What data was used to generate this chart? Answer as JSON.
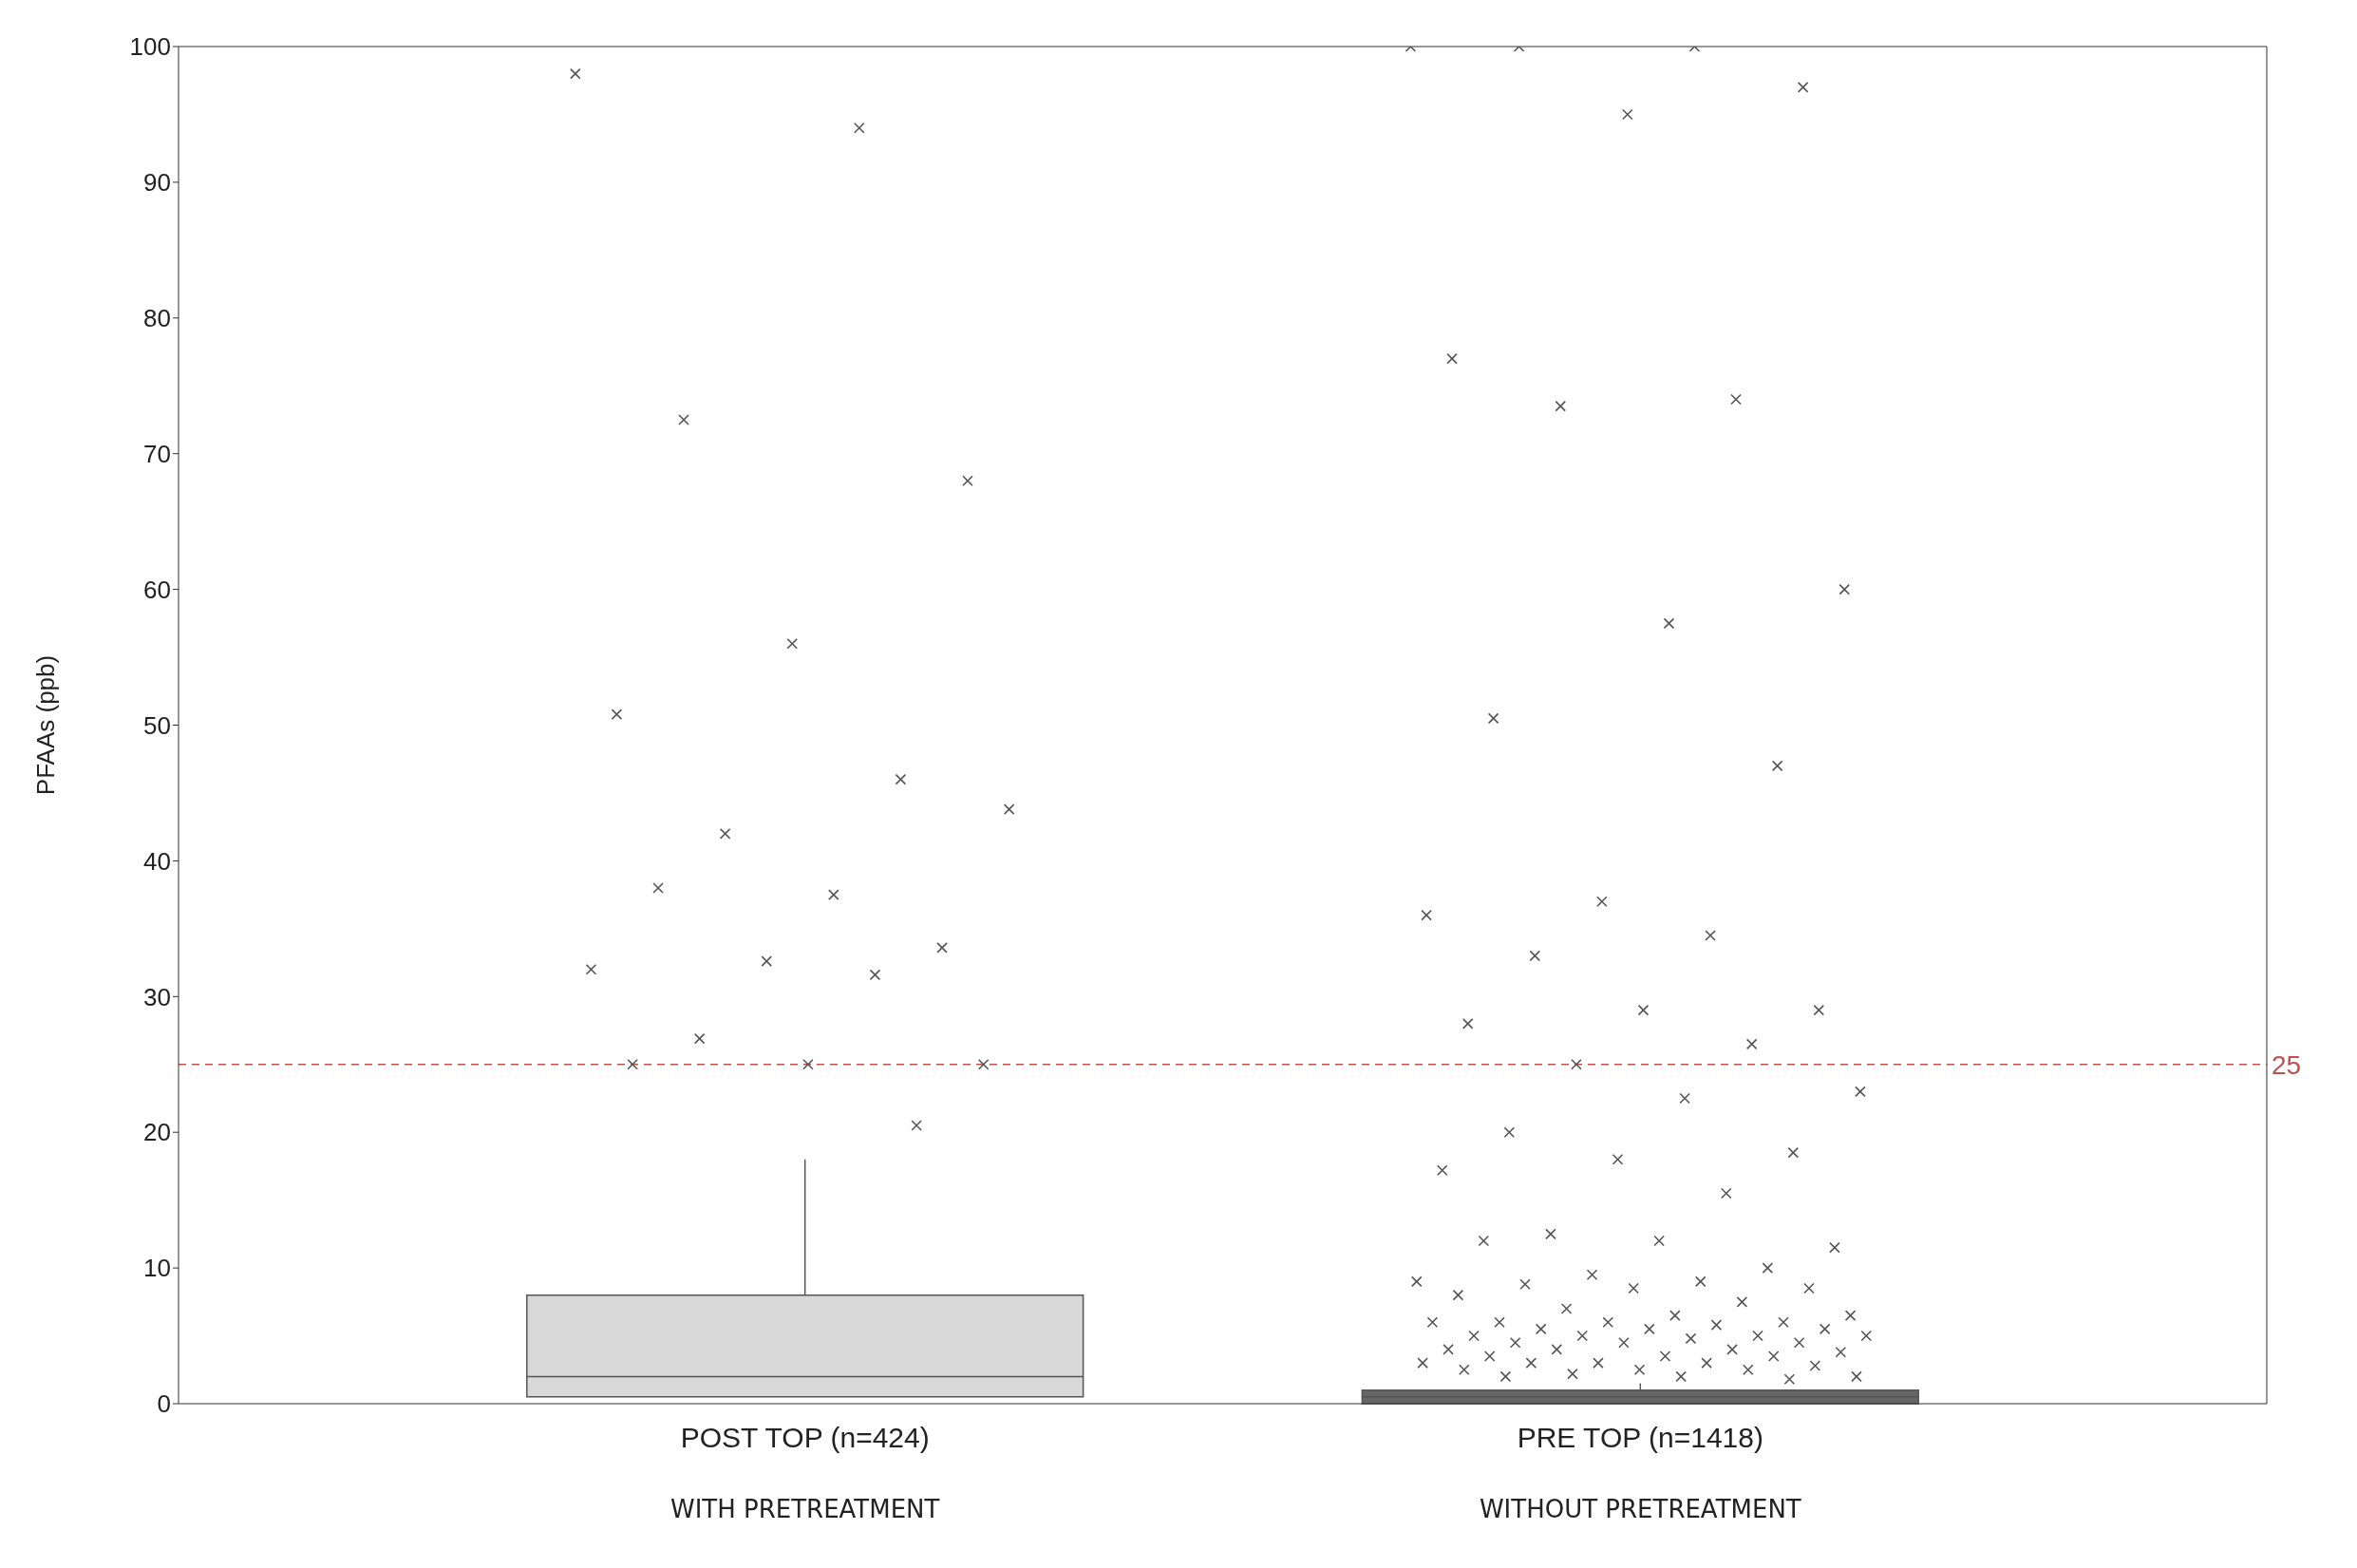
{
  "chart_data": {
    "type": "box",
    "ylabel": "PFAAs (ppb)",
    "categories": [
      "POST TOP (n=424)",
      "PRE TOP (n=1418)"
    ],
    "annotations": [
      "WITH PRETREATMENT",
      "WITHOUT PRETREATMENT"
    ],
    "colors": [
      "#d9d9d9",
      "#666666"
    ],
    "color": "#555555",
    "marker": "cross",
    "boxes": [
      {
        "low": 0.5,
        "q1": 0.5,
        "median": 2,
        "q3": 8,
        "high": 18,
        "outliers": [
          98,
          94,
          72.5,
          68,
          56,
          50.8,
          46,
          42,
          43.8,
          37.5,
          38,
          33.6,
          32.6,
          32,
          31.6,
          26.9,
          25,
          25,
          25,
          20.5
        ]
      },
      {
        "low": 0,
        "q1": 0,
        "median": 0.5,
        "q3": 1,
        "high": 1.5,
        "outliers": [
          100,
          100,
          100,
          97,
          95,
          77,
          74,
          73.5,
          60,
          57.5,
          50.5,
          47,
          37,
          36,
          34.5,
          33,
          29,
          29,
          28,
          26.5,
          25,
          23,
          22.5,
          20,
          18.5,
          18,
          17.2,
          15.5,
          12.5,
          11.5,
          12,
          12,
          10,
          9.5,
          9,
          9,
          8.8,
          8.5,
          8.5,
          8,
          7.5,
          7,
          6.5,
          6.5,
          6,
          6,
          6,
          6,
          5.8,
          5.5,
          5.5,
          5.5,
          5,
          5,
          5,
          5,
          4.8,
          4.5,
          4.5,
          4.5,
          4,
          4,
          4,
          3.8,
          3.5,
          3.5,
          3.5,
          3,
          3,
          3,
          3,
          2.8,
          2.5,
          2.5,
          2.5,
          2.2,
          2,
          2,
          2,
          1.8
        ]
      }
    ],
    "ylim": [
      0,
      100
    ],
    "yticks": [
      0,
      10,
      20,
      30,
      40,
      50,
      60,
      70,
      80,
      90,
      100
    ],
    "ref_lines": [
      {
        "axis": "y",
        "value": 25,
        "label": "25",
        "color": "#c0504d",
        "line_style": "dashed"
      }
    ],
    "grid": false
  }
}
